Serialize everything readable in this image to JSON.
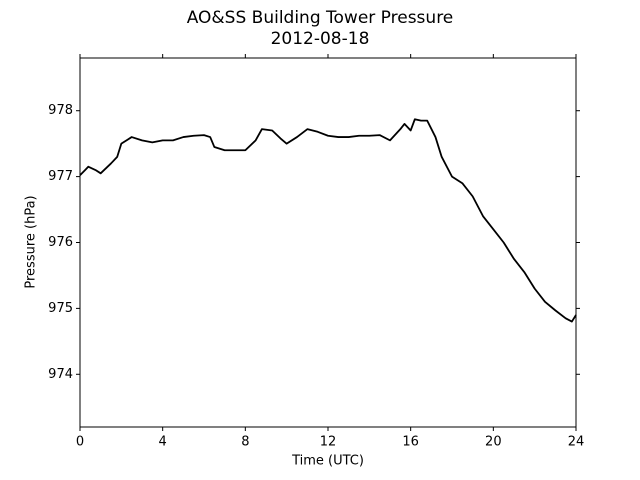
{
  "chart_data": {
    "type": "line",
    "title": "AO&SS Building Tower Pressure",
    "subtitle": "2012-08-18",
    "x_label": "Time (UTC)",
    "y_label": "Pressure (hPa)",
    "x": [
      0,
      0.25,
      0.4,
      0.75,
      1.0,
      1.5,
      1.8,
      2.0,
      2.5,
      3.0,
      3.5,
      4.0,
      4.5,
      5.0,
      5.5,
      6.0,
      6.3,
      6.5,
      7.0,
      7.5,
      8.0,
      8.5,
      8.8,
      9.3,
      9.7,
      10.0,
      10.5,
      11.0,
      11.5,
      12.0,
      12.5,
      13.0,
      13.5,
      14.0,
      14.5,
      15.0,
      15.5,
      15.7,
      16.0,
      16.2,
      16.5,
      16.8,
      17.2,
      17.5,
      18.0,
      18.5,
      19.0,
      19.5,
      20.0,
      20.5,
      21.0,
      21.5,
      22.0,
      22.5,
      23.0,
      23.5,
      23.8,
      24.0
    ],
    "series": [
      {
        "name": "Pressure",
        "color": "#000000",
        "values": [
          977.02,
          977.1,
          977.15,
          977.1,
          977.05,
          977.2,
          977.3,
          977.5,
          977.6,
          977.55,
          977.52,
          977.55,
          977.55,
          977.6,
          977.62,
          977.63,
          977.6,
          977.45,
          977.4,
          977.4,
          977.4,
          977.55,
          977.72,
          977.7,
          977.58,
          977.5,
          977.6,
          977.72,
          977.68,
          977.62,
          977.6,
          977.6,
          977.62,
          977.62,
          977.63,
          977.55,
          977.72,
          977.8,
          977.7,
          977.87,
          977.85,
          977.85,
          977.6,
          977.3,
          977.0,
          976.9,
          976.7,
          976.4,
          976.2,
          976.0,
          975.75,
          975.55,
          975.3,
          975.1,
          974.97,
          974.85,
          974.8,
          974.9
        ]
      }
    ],
    "xlim": [
      0,
      24
    ],
    "xticks": [
      0,
      4,
      8,
      12,
      16,
      20,
      24
    ],
    "ylim": [
      973.2,
      978.8
    ],
    "yticks": [
      974,
      975,
      976,
      977,
      978
    ],
    "grid": false
  }
}
